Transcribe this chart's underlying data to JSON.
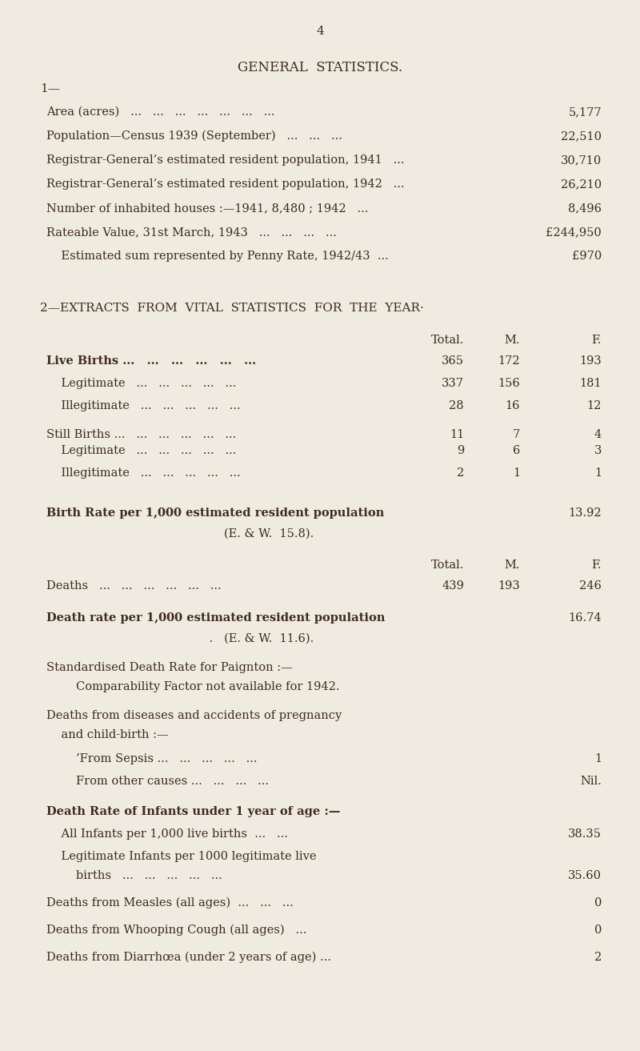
{
  "bg_color": "#f0ebe0",
  "text_color": "#3d2b1f",
  "page_number": "4",
  "title": "GENERAL  STATISTICS.",
  "section1_label": "1—",
  "section1_rows": [
    {
      "label": "Area (acres)   ...   ...   ...   ...   ...   ...   ...",
      "value": "5,177"
    },
    {
      "label": "Population—Census 1939 (September)   ...   ...   ...",
      "value": "22,510"
    },
    {
      "label": "Registrar-General’s estimated resident population, 1941   ...",
      "value": "30,710"
    },
    {
      "label": "Registrar-General’s estimated resident population, 1942   ...",
      "value": "26,210"
    },
    {
      "label": "Number of inhabited houses :—1941, 8,480 ; 1942   ...",
      "value": "8,496"
    },
    {
      "label": "Rateable Value, 31st March, 1943   ...   ...   ...   ...",
      "value": "£244,950"
    },
    {
      "label": "    Estimated sum represented by Penny Rate, 1942/43  ...",
      "value": "£970"
    }
  ],
  "section2_heading": "2—EXTRACTS  FROM  VITAL  STATISTICS  FOR  THE  YEAR·",
  "col_headers": [
    "Total.",
    "M.",
    "F."
  ],
  "vital_rows": [
    {
      "label": "Live Births ...   ...   ...   ...   ...   ...",
      "bold": true,
      "total": "365",
      "m": "172",
      "f": "193"
    },
    {
      "label": "    Legitimate   ...   ...   ...   ...   ...",
      "bold": false,
      "total": "337",
      "m": "156",
      "f": "181"
    },
    {
      "label": "    Illegitimate   ...   ...   ...   ...   ...",
      "bold": false,
      "total": "28",
      "m": "16",
      "f": "12"
    },
    {
      "label": "Still Births ...   ...   ...   ...   ...   ...",
      "bold": false,
      "total": "11",
      "m": "7",
      "f": "4"
    },
    {
      "label": "    Legitimate   ...   ...   ...   ...   ...",
      "bold": false,
      "total": "9",
      "m": "6",
      "f": "3"
    },
    {
      "label": "    Illegitimate   ...   ...   ...   ...   ...",
      "bold": false,
      "total": "2",
      "m": "1",
      "f": "1"
    }
  ],
  "birth_rate_line1": "Birth Rate per 1,000 estimated resident population",
  "birth_rate_value": "13.92",
  "birth_rate_line2": "(E. & W.  15.8).",
  "col_headers2": [
    "Total.",
    "M.",
    "F."
  ],
  "death_rows": [
    {
      "label": "Deaths   ...   ...   ...   ...   ...   ...",
      "total": "439",
      "m": "193",
      "f": "246"
    }
  ],
  "death_rate_line1": "Death rate per 1,000 estimated resident population",
  "death_rate_value": "16.74",
  "death_rate_line2": "         .   (E. & W.  11.6).",
  "std_death_line1": "Standardised Death Rate for Paignton :—",
  "std_death_line2": "        Comparability Factor not available for 1942.",
  "pregnancy_line1": "Deaths from diseases and accidents of pregnancy",
  "pregnancy_line2": "    and child-birth :—",
  "sepsis_label": "        ’From Sepsis ...   ...   ...   ...   ...",
  "sepsis_value": "1",
  "other_label": "        From other causes ...   ...   ...   ...",
  "other_value": "Nil.",
  "infant_line1": "Death Rate of Infants under 1 year of age :—",
  "all_infant_label": "    All Infants per 1,000 live births  ...   ...",
  "all_infant_value": "38.35",
  "legit_infant_label1": "    Legitimate Infants per 1000 legitimate live",
  "legit_infant_label2": "        births   ...   ...   ...   ...   ...",
  "legit_infant_value": "35.60",
  "measles_label": "Deaths from Measles (all ages)  ...   ...   ...",
  "measles_value": "0",
  "whooping_label": "Deaths from Whooping Cough (all ages)   ...",
  "whooping_value": "0",
  "diarrhoea_label": "Deaths from Diarrhœa (under 2 years of age) ...",
  "diarrhoea_value": "2"
}
